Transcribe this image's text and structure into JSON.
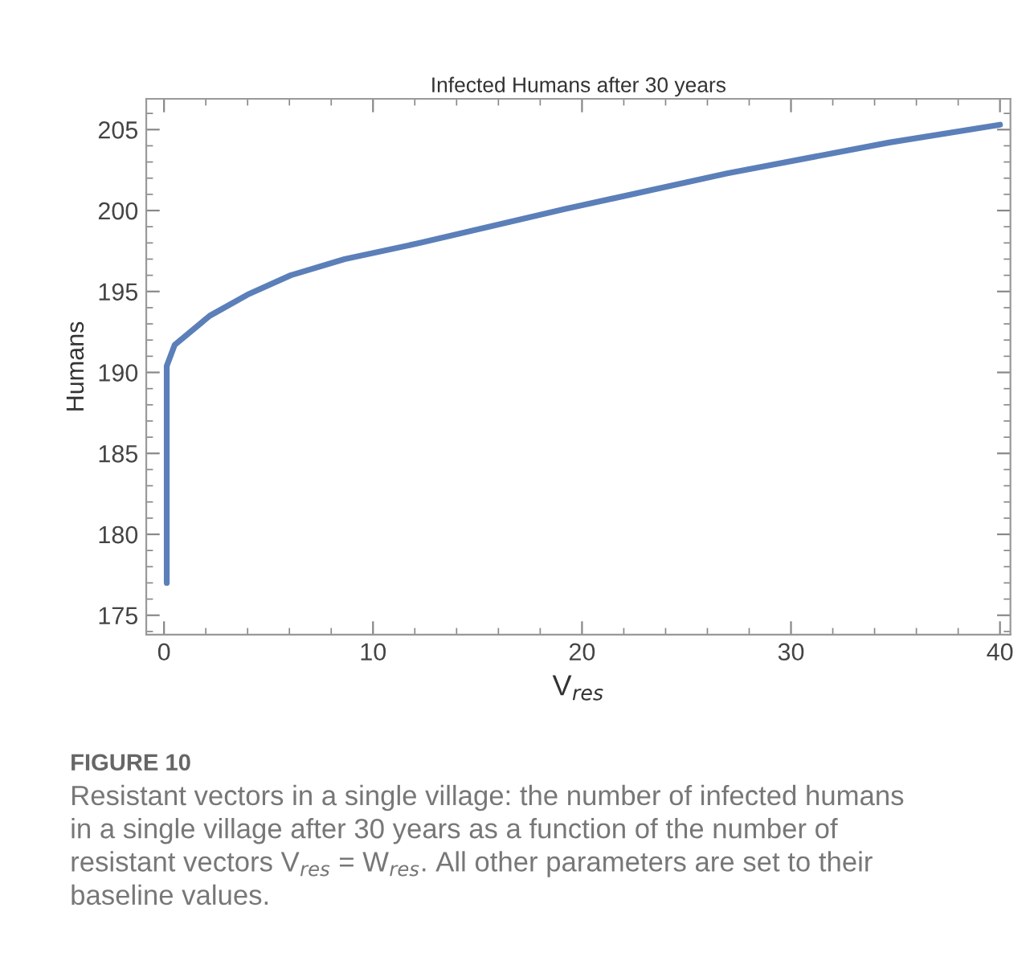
{
  "chart_data": {
    "type": "line",
    "title": "Infected Humans after 30 years",
    "xlabel": "V$_{res}$",
    "ylabel": "Humans",
    "x": [
      0.13,
      0.13,
      0.51,
      2.19,
      3.99,
      6.06,
      8.64,
      12.25,
      19.2,
      26.95,
      34.7,
      40
    ],
    "series": [
      {
        "color": "#5b7fb9",
        "values": [
          177.0,
          190.4,
          191.7,
          193.5,
          194.8,
          196.0,
          197.0,
          198.0,
          200.1,
          202.3,
          204.2,
          205.3
        ]
      }
    ],
    "xlim": [
      -0.85,
      40.5
    ],
    "ylim": [
      173.8,
      206.9
    ],
    "xticks": [
      0,
      10,
      20,
      30,
      40
    ],
    "yticks": [
      175,
      180,
      185,
      190,
      195,
      200,
      205
    ],
    "grid": false,
    "marker": "none",
    "line_style": "solid",
    "annotations": [
      "FIGURE 10",
      "Resistant vectors in a single village: the number of infected humans\nin a single village after 30 years as a function of the number of\nresistant vectors V$_{res}$ = W$_{res}$. All other parameters are set to their\nbaseline values."
    ]
  }
}
